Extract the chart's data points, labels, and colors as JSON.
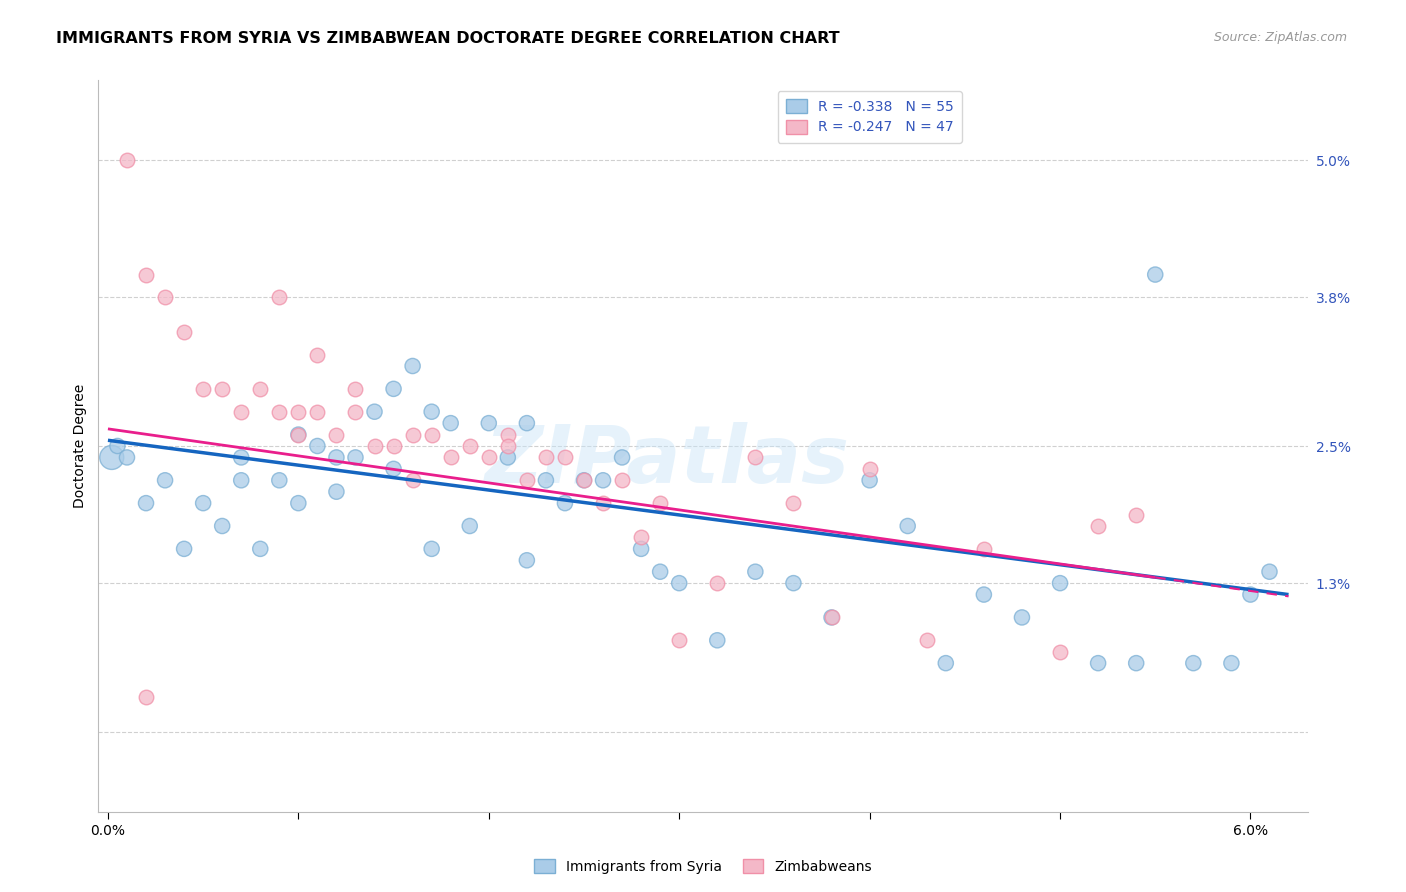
{
  "title": "IMMIGRANTS FROM SYRIA VS ZIMBABWEAN DOCTORATE DEGREE CORRELATION CHART",
  "source_text": "Source: ZipAtlas.com",
  "ylabel": "Doctorate Degree",
  "xlim": [
    -0.0005,
    0.063
  ],
  "ylim": [
    -0.007,
    0.057
  ],
  "x_ticks": [
    0.0,
    0.01,
    0.02,
    0.03,
    0.04,
    0.05,
    0.06
  ],
  "y_ticks_right": [
    0.0,
    0.013,
    0.025,
    0.038,
    0.05
  ],
  "y_tick_labels_right": [
    "",
    "1.3%",
    "2.5%",
    "3.8%",
    "5.0%"
  ],
  "legend_label1": "R = -0.338   N = 55",
  "legend_label2": "R = -0.247   N = 47",
  "watermark": "ZIPatlas",
  "blue_scatter_x": [
    0.0002,
    0.0005,
    0.001,
    0.002,
    0.003,
    0.004,
    0.005,
    0.006,
    0.007,
    0.007,
    0.008,
    0.009,
    0.01,
    0.01,
    0.011,
    0.012,
    0.012,
    0.013,
    0.014,
    0.015,
    0.015,
    0.016,
    0.017,
    0.017,
    0.018,
    0.019,
    0.02,
    0.021,
    0.022,
    0.022,
    0.023,
    0.024,
    0.025,
    0.026,
    0.027,
    0.028,
    0.029,
    0.03,
    0.032,
    0.034,
    0.036,
    0.038,
    0.04,
    0.042,
    0.044,
    0.046,
    0.048,
    0.05,
    0.052,
    0.054,
    0.055,
    0.057,
    0.059,
    0.06,
    0.061
  ],
  "blue_scatter_y": [
    0.024,
    0.025,
    0.024,
    0.02,
    0.022,
    0.016,
    0.02,
    0.018,
    0.022,
    0.024,
    0.016,
    0.022,
    0.026,
    0.02,
    0.025,
    0.024,
    0.021,
    0.024,
    0.028,
    0.03,
    0.023,
    0.032,
    0.028,
    0.016,
    0.027,
    0.018,
    0.027,
    0.024,
    0.027,
    0.015,
    0.022,
    0.02,
    0.022,
    0.022,
    0.024,
    0.016,
    0.014,
    0.013,
    0.008,
    0.014,
    0.013,
    0.01,
    0.022,
    0.018,
    0.006,
    0.012,
    0.01,
    0.013,
    0.006,
    0.006,
    0.04,
    0.006,
    0.006,
    0.012,
    0.014
  ],
  "blue_scatter_sizes": [
    300,
    120,
    120,
    120,
    120,
    120,
    120,
    120,
    120,
    120,
    120,
    120,
    120,
    120,
    120,
    120,
    120,
    120,
    120,
    120,
    120,
    120,
    120,
    120,
    120,
    120,
    120,
    120,
    120,
    120,
    120,
    120,
    120,
    120,
    120,
    120,
    120,
    120,
    120,
    120,
    120,
    120,
    120,
    120,
    120,
    120,
    120,
    120,
    120,
    120,
    120,
    120,
    120,
    120,
    120
  ],
  "pink_scatter_x": [
    0.001,
    0.002,
    0.003,
    0.004,
    0.005,
    0.006,
    0.007,
    0.008,
    0.009,
    0.009,
    0.01,
    0.01,
    0.011,
    0.011,
    0.012,
    0.013,
    0.013,
    0.014,
    0.015,
    0.016,
    0.016,
    0.017,
    0.018,
    0.019,
    0.02,
    0.021,
    0.021,
    0.022,
    0.023,
    0.024,
    0.025,
    0.026,
    0.027,
    0.028,
    0.029,
    0.03,
    0.032,
    0.034,
    0.036,
    0.038,
    0.04,
    0.043,
    0.046,
    0.05,
    0.052,
    0.054,
    0.002
  ],
  "pink_scatter_y": [
    0.05,
    0.04,
    0.038,
    0.035,
    0.03,
    0.03,
    0.028,
    0.03,
    0.028,
    0.038,
    0.028,
    0.026,
    0.028,
    0.033,
    0.026,
    0.028,
    0.03,
    0.025,
    0.025,
    0.022,
    0.026,
    0.026,
    0.024,
    0.025,
    0.024,
    0.026,
    0.025,
    0.022,
    0.024,
    0.024,
    0.022,
    0.02,
    0.022,
    0.017,
    0.02,
    0.008,
    0.013,
    0.024,
    0.02,
    0.01,
    0.023,
    0.008,
    0.016,
    0.007,
    0.018,
    0.019,
    0.003
  ],
  "blue_line_x0": 0.0,
  "blue_line_x1": 0.062,
  "blue_line_y0": 0.0255,
  "blue_line_y1": 0.012,
  "pink_line_x0": 0.0,
  "pink_line_x1": 0.055,
  "pink_line_y0": 0.0265,
  "pink_line_y1": 0.0135,
  "blue_line_color": "#1565c0",
  "pink_line_color": "#e91e8c",
  "scatter_blue_fill": "#aacce8",
  "scatter_pink_fill": "#f4b8c8",
  "scatter_blue_edge": "#7bafd4",
  "scatter_pink_edge": "#f090a8",
  "scatter_size": 110,
  "scatter_alpha": 0.75,
  "grid_color": "#d0d0d0",
  "background_color": "#ffffff",
  "title_fontsize": 11.5,
  "source_fontsize": 9,
  "legend_fontsize": 10,
  "ylabel_fontsize": 10,
  "tick_fontsize": 10,
  "watermark_color": "#c8e4f8",
  "watermark_alpha": 0.45,
  "watermark_fontsize": 58,
  "legend_text_color": "#3355bb"
}
